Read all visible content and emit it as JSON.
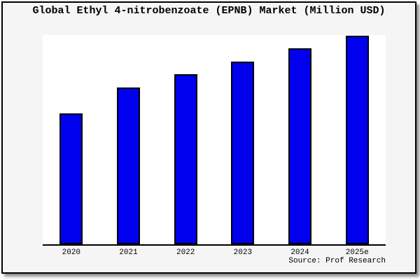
{
  "chart_data": {
    "type": "bar",
    "title": "Global Ethyl 4-nitrobenzoate (EPNB) Market (Million USD)",
    "categories": [
      "2020",
      "2021",
      "2022",
      "2023",
      "2024",
      "2025e"
    ],
    "values": [
      188,
      225,
      244,
      262,
      281,
      299
    ],
    "value_note": "relative units estimated from bar heights; y-axis has no tick labels in the image",
    "xlabel": "",
    "ylabel": "",
    "ylim": [
      0,
      300
    ],
    "grid": false,
    "legend": null,
    "bar_color": "#0000ee",
    "bar_edge_color": "#000000"
  },
  "source": {
    "label": "Source: Prof Research"
  },
  "colors": {
    "figure_background": "#f5f5f5",
    "plot_background": "#ffffff",
    "border": "#000000",
    "title_text": "#000000"
  }
}
